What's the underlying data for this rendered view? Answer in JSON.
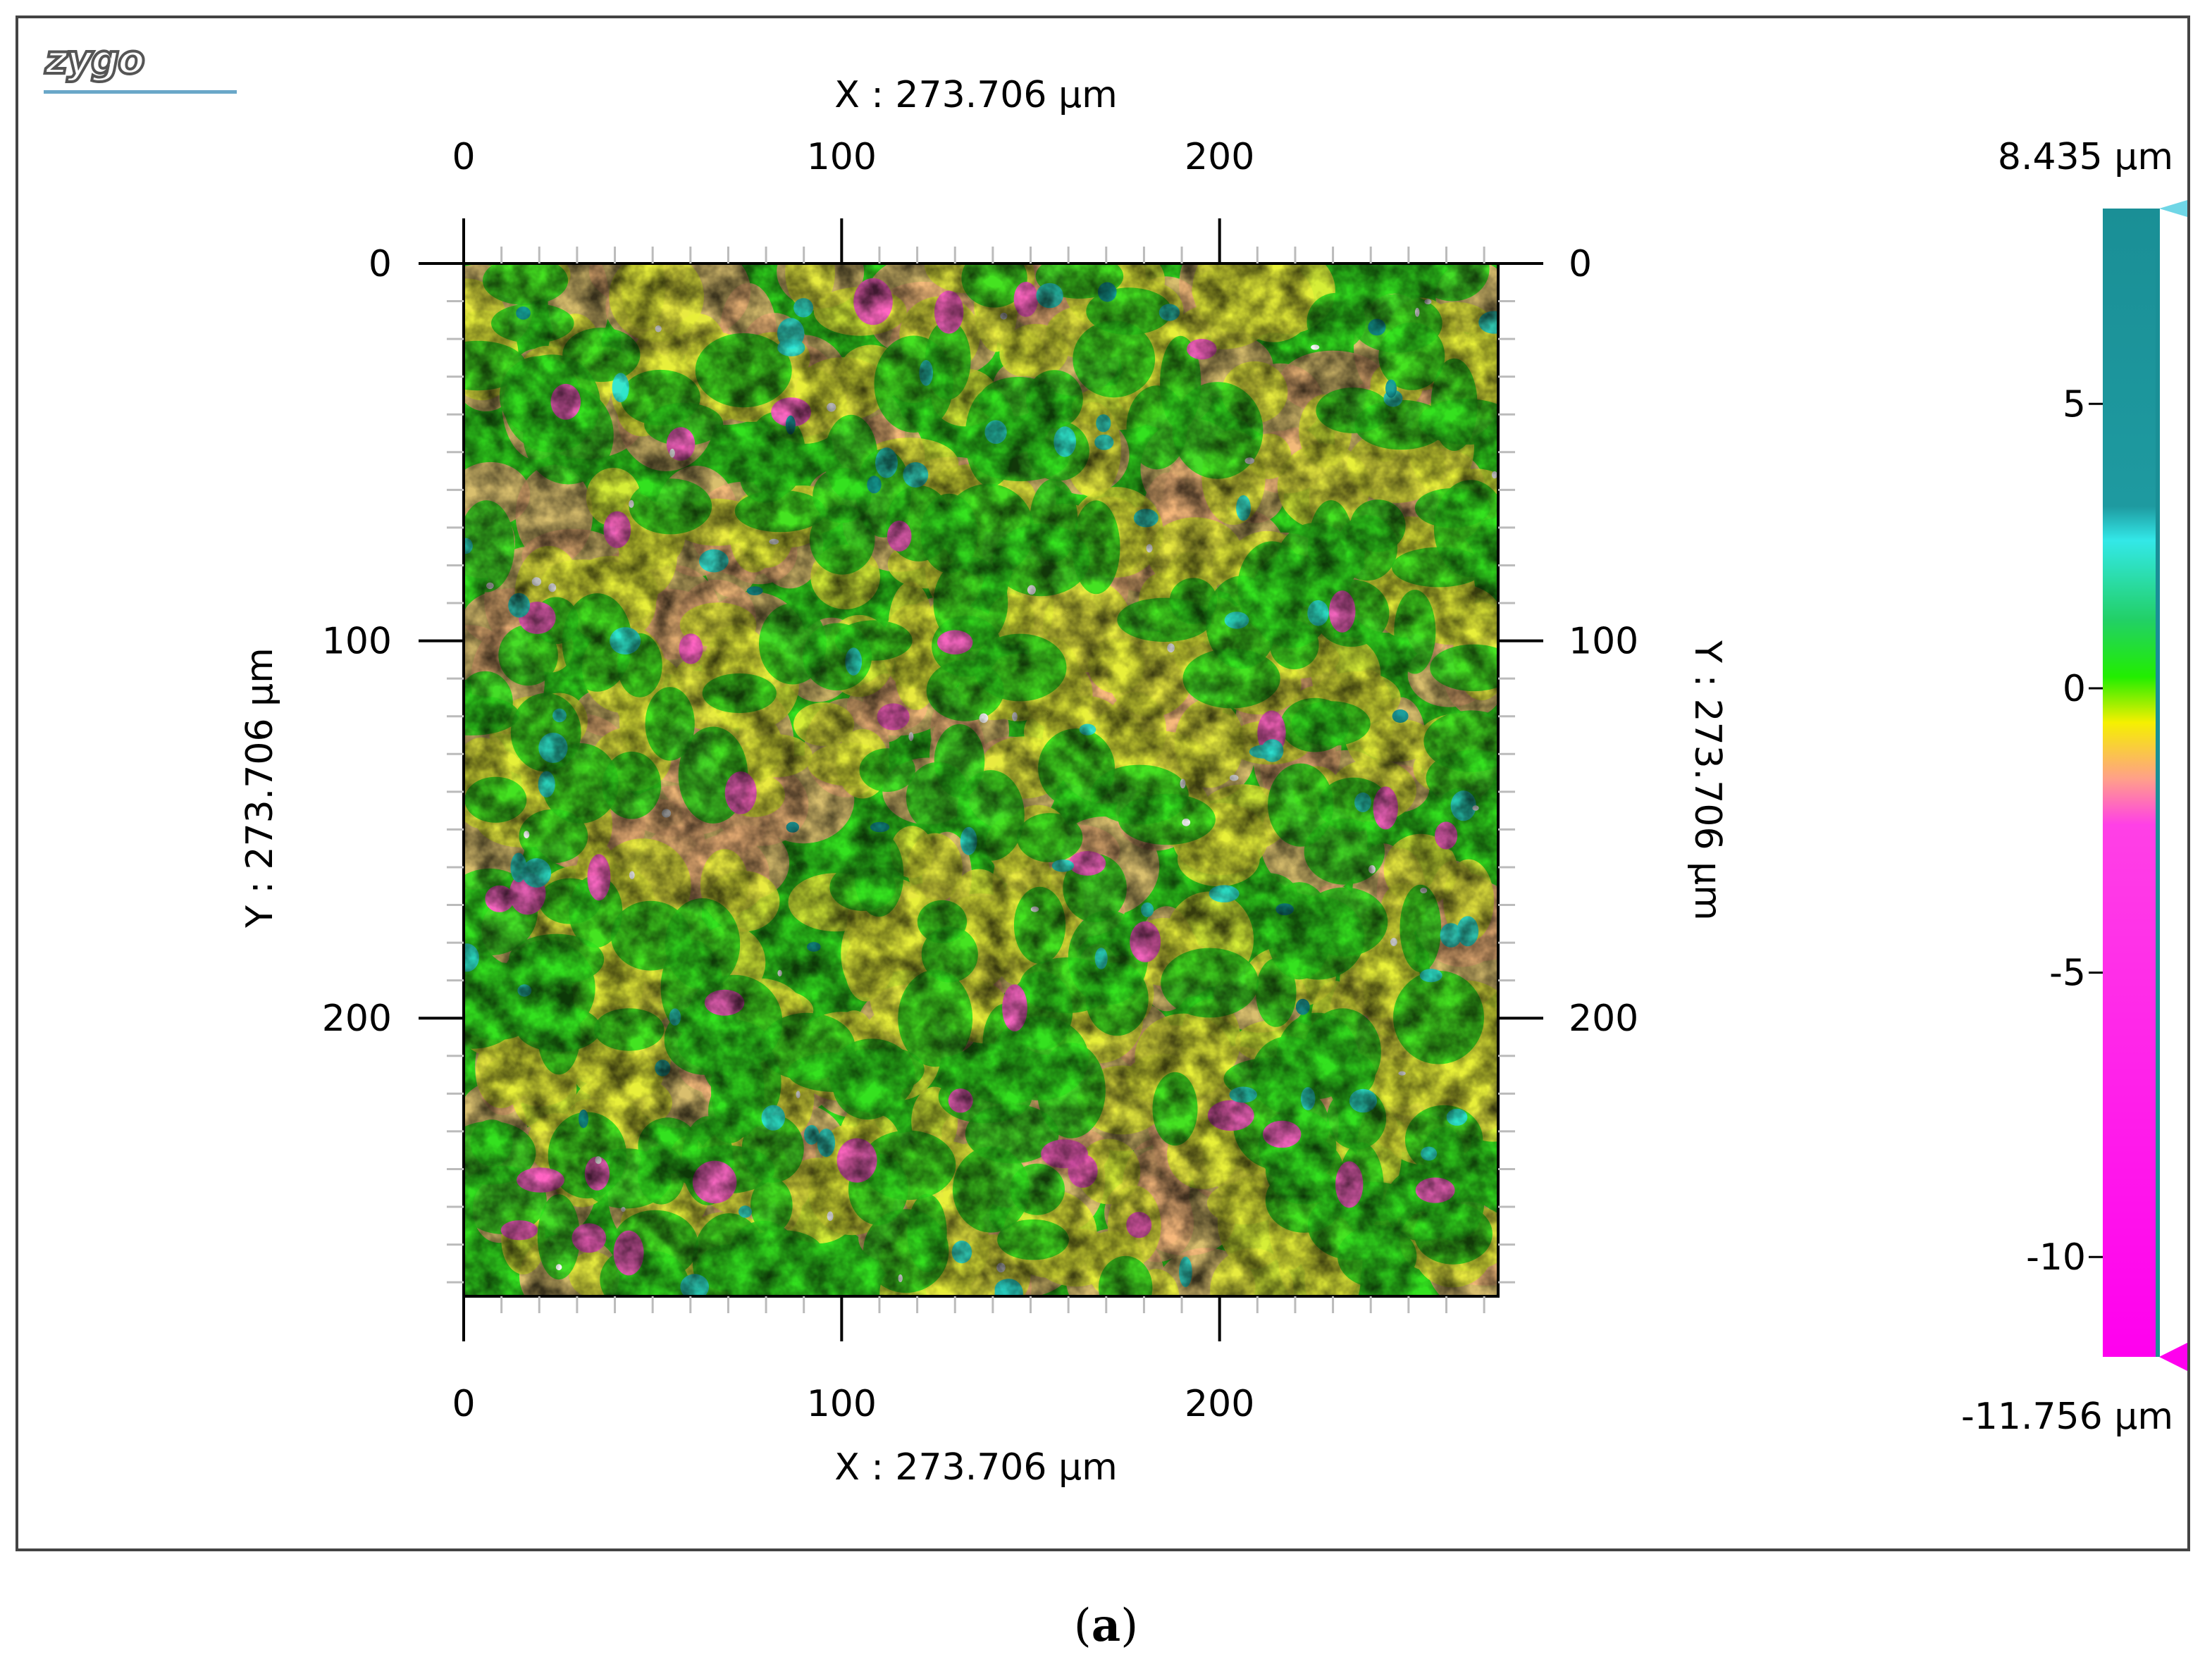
{
  "logo": {
    "text": "zygo"
  },
  "chart_data": {
    "type": "heatmap",
    "title": "",
    "x_axis": {
      "label": "X : 273.706 µm",
      "range": [
        0,
        273.706
      ],
      "ticks": [
        0,
        100,
        200
      ]
    },
    "y_axis": {
      "label": "Y : 273.706 µm",
      "range": [
        0,
        273.706
      ],
      "ticks": [
        0,
        100,
        200
      ],
      "inverted": true
    },
    "colorbar": {
      "max_label": "8.435 µm",
      "min_label": "-11.756 µm",
      "range": [
        -11.756,
        8.435
      ],
      "ticks": [
        5,
        0,
        -5,
        -10
      ],
      "colors": [
        {
          "value": 8.435,
          "color": "#1a8f96"
        },
        {
          "value": 3.2,
          "color": "#1e9aa0"
        },
        {
          "value": 2.6,
          "color": "#33e8e8"
        },
        {
          "value": 1.2,
          "color": "#22d066"
        },
        {
          "value": 0.2,
          "color": "#22ee00"
        },
        {
          "value": -0.6,
          "color": "#f5f000"
        },
        {
          "value": -1.6,
          "color": "#ff9f8a"
        },
        {
          "value": -2.4,
          "color": "#ff40e6"
        },
        {
          "value": -11.756,
          "color": "#ff00ee"
        }
      ]
    },
    "surface_description": "rough surface height map, values mostly between -3 and 2 µm",
    "colors": {
      "green": "#33e11f",
      "yellow": "#e8f03a",
      "orange": "#f7b87c",
      "pink": "#ff5fc8",
      "cyan": "#2ee6d6",
      "teal": "#139c9e"
    }
  },
  "caption": {
    "label": "a"
  }
}
